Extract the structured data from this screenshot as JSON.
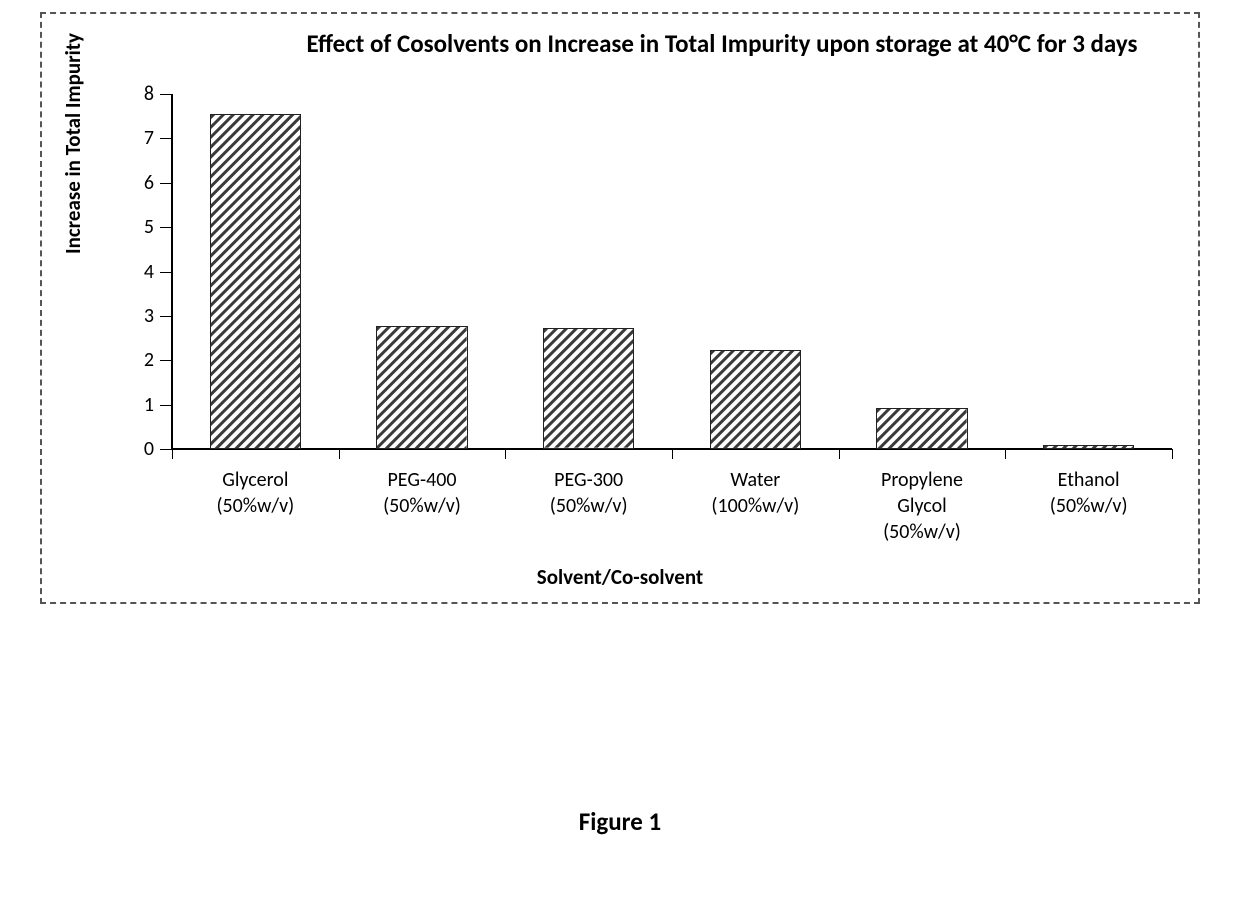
{
  "chart": {
    "type": "bar",
    "title": "Effect of Cosolvents on Increase in Total Impurity upon storage  at 40°C for 3 days",
    "title_fontsize": 25,
    "title_fontweight": "bold",
    "ylabel": "Increase in Total Impurity",
    "xlabel": "Solvent/Co-solvent",
    "label_fontsize": 21,
    "label_fontweight": "bold",
    "ylim": [
      0,
      8
    ],
    "ytick_step": 1,
    "yticks": [
      0,
      1,
      2,
      3,
      4,
      5,
      6,
      7,
      8
    ],
    "tick_fontsize": 20,
    "categories": [
      "Glycerol\n(50%w/v)",
      "PEG-400\n(50%w/v)",
      "PEG-300\n(50%w/v)",
      "Water\n(100%w/v)",
      "Propylene\nGlycol\n(50%w/v)",
      "Ethanol\n(50%w/v)"
    ],
    "values": [
      7.55,
      2.78,
      2.72,
      2.23,
      0.93,
      0.1
    ],
    "bar_fill_pattern": "diagonal-hatch",
    "bar_pattern_color": "#3a3a3a",
    "bar_pattern_bg": "#ffffff",
    "bar_border_color": "#222222",
    "bar_width_ratio": 0.55,
    "axis_color": "#000000",
    "frame_border_style": "dashed",
    "frame_border_color": "#555555",
    "background_color": "#ffffff"
  },
  "caption": "Figure 1",
  "caption_fontsize": 25,
  "caption_fontweight": "bold"
}
